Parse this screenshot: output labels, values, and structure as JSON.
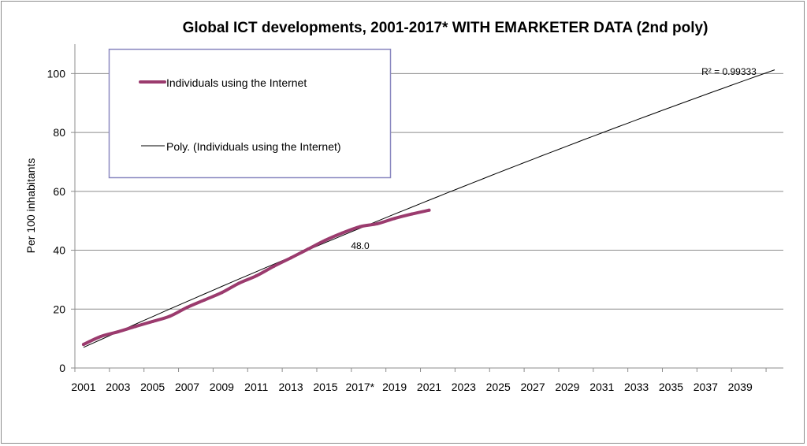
{
  "chart_data": {
    "type": "line",
    "title": "Global ICT developments, 2001-2017* WITH EMARKETER DATA (2nd poly)",
    "ylabel": "Per 100 inhabitants",
    "xlabel": "",
    "ylim": [
      0,
      110
    ],
    "yticks": [
      0,
      20,
      40,
      60,
      80,
      100
    ],
    "grid": true,
    "legend_position": "top-left",
    "x_tick_labels": [
      "2001",
      "2003",
      "2005",
      "2007",
      "2009",
      "2011",
      "2013",
      "2015",
      "2017*",
      "2019",
      "2021",
      "2023",
      "2025",
      "2027",
      "2029",
      "2031",
      "2033",
      "2035",
      "2037",
      "2039"
    ],
    "series": [
      {
        "name": "Individuals using the Internet",
        "color": "#9b3b6e",
        "x": [
          2001,
          2002,
          2003,
          2004,
          2005,
          2006,
          2007,
          2008,
          2009,
          2010,
          2011,
          2012,
          2013,
          2014,
          2015,
          2016,
          2017,
          2018,
          2019,
          2020,
          2021
        ],
        "values": [
          8.0,
          10.7,
          12.3,
          14.1,
          15.8,
          17.6,
          20.6,
          23.1,
          25.6,
          28.8,
          31.3,
          34.5,
          37.4,
          40.4,
          43.4,
          45.9,
          48.0,
          49.0,
          50.8,
          52.3,
          53.6
        ]
      }
    ],
    "trendline": {
      "name": "Poly. (Individuals using the Internet)",
      "type": "polynomial order 2",
      "color": "#000000",
      "estimated_values": {
        "2001": 7.0,
        "2021": 57.0,
        "2039": 97.1
      },
      "r_squared_label": "R² = 0.99333"
    },
    "annotations": [
      {
        "x": "2017*",
        "text": "48.0"
      }
    ]
  }
}
